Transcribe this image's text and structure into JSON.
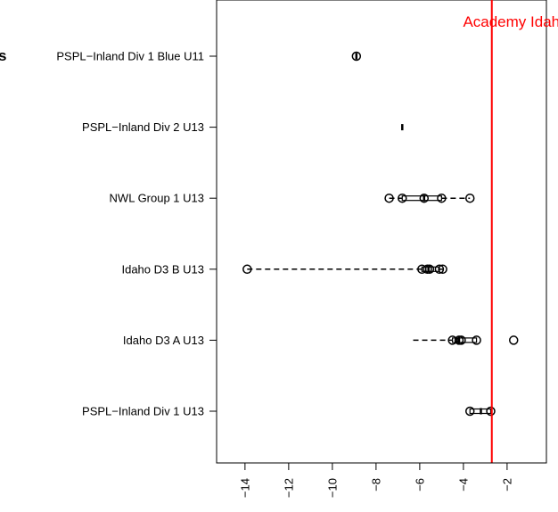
{
  "chart_data": {
    "type": "boxplot",
    "title": "",
    "xlabel": "",
    "ylabel": "",
    "xlim": [
      -15.3,
      -0.2
    ],
    "x_ticks": [
      -14,
      -12,
      -10,
      -8,
      -6,
      -4,
      -2
    ],
    "categories": [
      "PSPL−Inland Div 1 U13",
      "Idaho D3 A U13",
      "Idaho D3 B U13",
      "NWL Group 1 U13",
      "PSPL−Inland Div 2 U13",
      "PSPL−Inland Div 1 Blue U11"
    ],
    "boxes": [
      {
        "whisker_low": -3.7,
        "q1": -3.7,
        "median": -3.2,
        "q3": -2.75,
        "whisker_high": -2.75,
        "outliers": [
          -3.7,
          -2.75
        ]
      },
      {
        "whisker_low": -6.3,
        "q1": -4.5,
        "median": -4.2,
        "q3": -3.4,
        "whisker_high": -3.4,
        "outliers": [
          -4.5,
          -4.2,
          -4.1,
          -3.4,
          -1.7
        ]
      },
      {
        "whisker_low": -13.9,
        "q1": -5.9,
        "median": -5.6,
        "q3": -5.1,
        "whisker_high": -4.9,
        "outliers": [
          -13.9,
          -5.9,
          -5.65,
          -5.55,
          -5.1,
          -4.95
        ]
      },
      {
        "whisker_low": -7.4,
        "q1": -6.8,
        "median": -5.8,
        "q3": -5.0,
        "whisker_high": -3.7,
        "outliers": [
          -7.4,
          -6.8,
          -5.8,
          -5.0,
          -3.7
        ]
      },
      {
        "whisker_low": -6.8,
        "q1": -6.8,
        "median": -6.8,
        "q3": -6.8,
        "whisker_high": -6.8,
        "outliers": []
      },
      {
        "whisker_low": -8.9,
        "q1": -8.9,
        "median": -8.9,
        "q3": -8.9,
        "whisker_high": -8.9,
        "outliers": [
          -8.9
        ]
      }
    ],
    "reference_line": {
      "x": -2.7,
      "label": "Academy Idaho Ca",
      "color": "#ff0000"
    },
    "left_edge_text": "s",
    "grid": false
  }
}
